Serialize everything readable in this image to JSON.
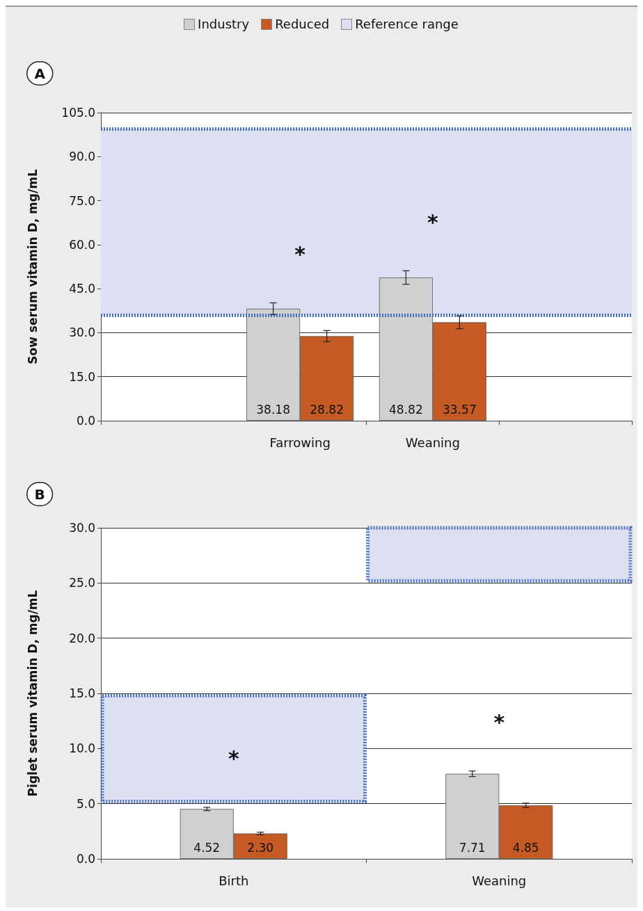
{
  "chart_data": [
    {
      "type": "bar",
      "ylabel": "Sow serum vitamin D, mg/mL",
      "categories": [
        null,
        "Farrowing",
        "Weaning",
        null
      ],
      "series": [
        {
          "name": "Industry",
          "color": "#d0d0d0",
          "values": [
            null,
            38.18,
            48.82,
            null
          ],
          "errors": [
            null,
            2.0,
            2.3,
            null
          ],
          "value_labels": [
            null,
            "38.18",
            "48.82",
            null
          ]
        },
        {
          "name": "Reduced",
          "color": "#c55a24",
          "values": [
            null,
            28.82,
            33.57,
            null
          ],
          "errors": [
            null,
            1.9,
            2.2,
            null
          ],
          "value_labels": [
            null,
            "28.82",
            "33.57",
            null
          ]
        }
      ],
      "ylim": [
        0,
        105
      ],
      "yticks": [
        {
          "value": 0,
          "label": "0.0"
        },
        {
          "value": 15,
          "label": "15.0"
        },
        {
          "value": 30,
          "label": "30.0"
        },
        {
          "value": 45,
          "label": "45.0"
        },
        {
          "value": 60,
          "label": "60.0"
        },
        {
          "value": 75,
          "label": "75.0"
        },
        {
          "value": 90,
          "label": "90.0"
        },
        {
          "value": 105,
          "label": "105.0"
        }
      ],
      "bands": [
        {
          "axis": "y",
          "from": 36,
          "to": 99.5,
          "label": "Reference range",
          "color": "#dde0f2"
        }
      ],
      "ref_lines": [
        {
          "axis": "y",
          "value": 36,
          "color": "#4a72c4",
          "line_style": "dotted"
        },
        {
          "axis": "y",
          "value": 99.5,
          "color": "#4a72c4",
          "line_style": "dotted"
        }
      ],
      "annotations": [
        "A",
        "*",
        "*"
      ],
      "grid": "y",
      "legend": "top"
    },
    {
      "type": "bar",
      "ylabel": "Piglet serum vitamin D, mg/mL",
      "categories": [
        "Birth",
        "Weaning"
      ],
      "series": [
        {
          "color": "#d0d0d0",
          "values": [
            4.52,
            7.71
          ],
          "errors": [
            0.15,
            0.25
          ],
          "value_labels": [
            "4.52",
            "7.71"
          ]
        },
        {
          "color": "#c55a24",
          "values": [
            2.3,
            4.85
          ],
          "errors": [
            0.12,
            0.2
          ],
          "value_labels": [
            "2.30",
            "4.85"
          ]
        },
        {
          "color": "#dde0f2",
          "values": [
            9.6,
            4.8
          ],
          "base": [
            5.2,
            25.2
          ],
          "line_style": "dotted"
        }
      ],
      "ylim": [
        0,
        30
      ],
      "yticks": [
        {
          "value": 0,
          "label": "0.0"
        },
        {
          "value": 5,
          "label": "5.0"
        },
        {
          "value": 10,
          "label": "10.0"
        },
        {
          "value": 15,
          "label": "15.0"
        },
        {
          "value": 20,
          "label": "20.0"
        },
        {
          "value": 25,
          "label": "25.0"
        },
        {
          "value": 30,
          "label": "30.0"
        }
      ],
      "annotations": [
        "B",
        "*",
        "*"
      ],
      "grid": "y",
      "legend": false
    }
  ]
}
